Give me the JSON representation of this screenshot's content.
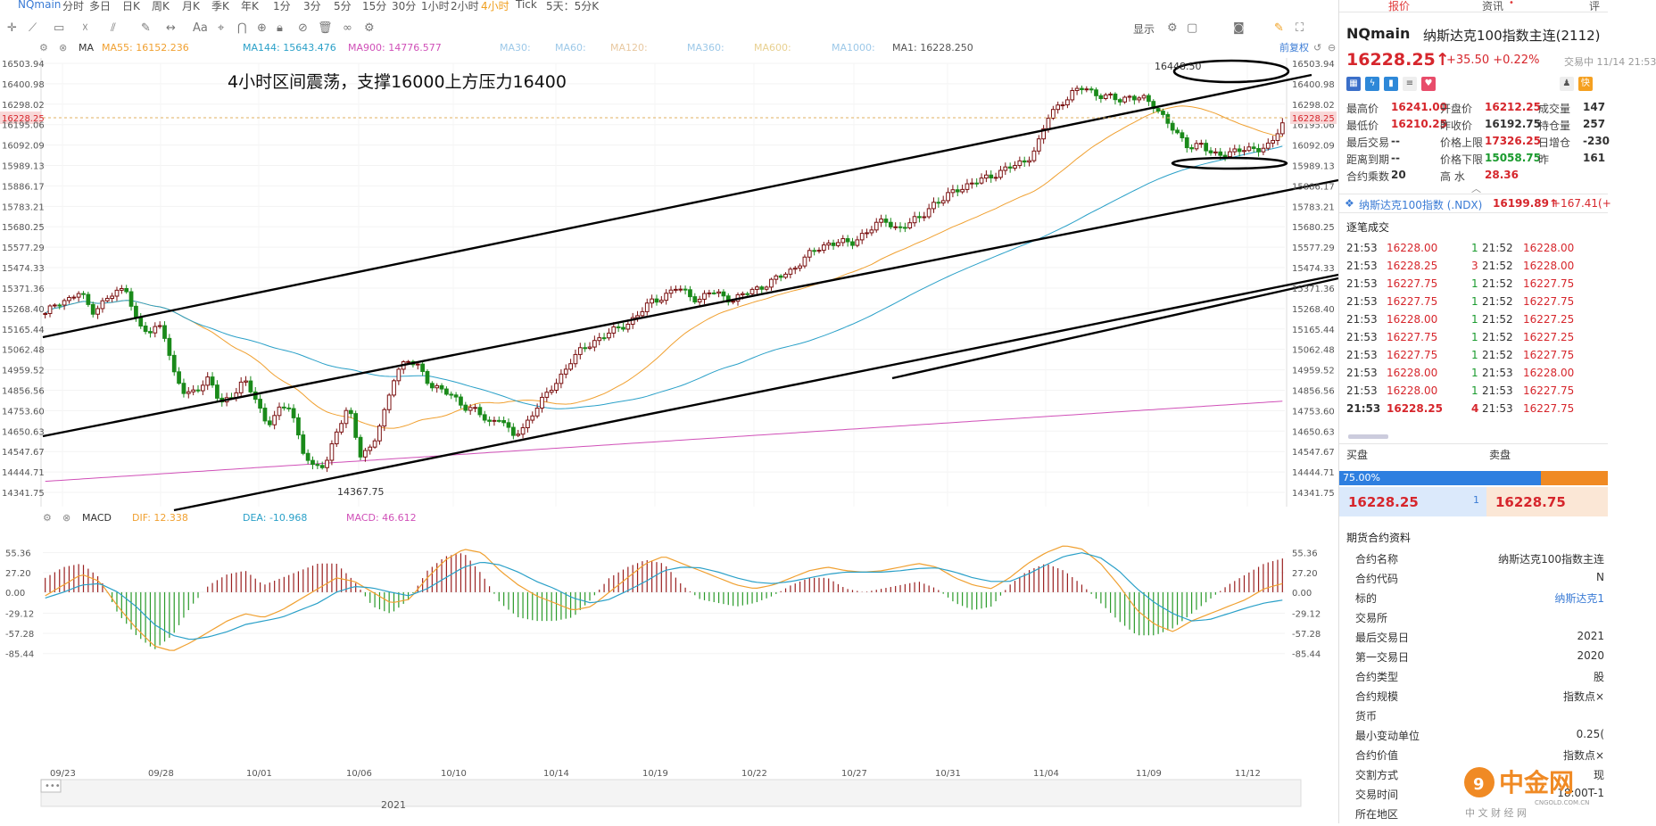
{
  "topbar": {
    "items": [
      "NQmain",
      "分时",
      "多日",
      "日K",
      "周K",
      "月K",
      "季K",
      "年K",
      "1分",
      "3分",
      "5分",
      "15分",
      "30分",
      "1小时",
      "2小时",
      "4小时",
      "Tick",
      "5天：5分K"
    ],
    "active": "4小时",
    "show_label": "显示"
  },
  "ma_legend": {
    "ma_label": "MA",
    "items": [
      {
        "label": "MA55: 16152.236",
        "color": "#f0a030"
      },
      {
        "label": "MA144: 15643.476",
        "color": "#2aa0c8"
      },
      {
        "label": "MA900: 14776.577",
        "color": "#d050b8"
      },
      {
        "label": "MA30:",
        "color": "#9cc8e8"
      },
      {
        "label": "MA60:",
        "color": "#9cc8e8"
      },
      {
        "label": "MA120:",
        "color": "#e8c8a0"
      },
      {
        "label": "MA360:",
        "color": "#9cc8e8"
      },
      {
        "label": "MA600:",
        "color": "#e8d090"
      },
      {
        "label": "MA1000:",
        "color": "#9cc8e8"
      },
      {
        "label": "MA1: 16228.250",
        "color": "#555555"
      }
    ],
    "restore": "前复权"
  },
  "annotation": "4小时区间震荡，支撑16000上方压力16400",
  "chart_data": {
    "type": "candlestick",
    "price_axis": [
      "16503.94",
      "16400.98",
      "16298.02",
      "16195.06",
      "16092.09",
      "15989.13",
      "15886.17",
      "15783.21",
      "15680.25",
      "15577.29",
      "15474.33",
      "15371.36",
      "15268.40",
      "15165.44",
      "15062.48",
      "14959.52",
      "14856.56",
      "14753.60",
      "14650.63",
      "14547.67",
      "14444.71",
      "14341.75"
    ],
    "current_price_label": "16228.25",
    "high_label": "16448.50",
    "low_label": "14367.75",
    "x_dates": [
      "09/23",
      "09/28",
      "10/01",
      "10/06",
      "10/10",
      "10/14",
      "10/19",
      "10/22",
      "10/27",
      "10/31",
      "11/04",
      "11/09",
      "11/12"
    ],
    "year_label": "2021",
    "ylim": [
      14290,
      16560
    ],
    "close_path": [
      15215,
      15290,
      15300,
      15335,
      15240,
      15285,
      15335,
      15360,
      15150,
      15120,
      15180,
      14900,
      14790,
      14830,
      14870,
      14750,
      14790,
      14860,
      14780,
      14630,
      14700,
      14740,
      14500,
      14390,
      14430,
      14600,
      14720,
      14480,
      14510,
      14680,
      14920,
      14970,
      14940,
      14850,
      14810,
      14780,
      14730,
      14700,
      14640,
      14680,
      14560,
      14620,
      14720,
      14790,
      14880,
      14970,
      15030,
      15080,
      15110,
      15140,
      15180,
      15230,
      15290,
      15320,
      15360,
      15330,
      15300,
      15340,
      15320,
      15300,
      15330,
      15360,
      15390,
      15420,
      15460,
      15520,
      15560,
      15600,
      15610,
      15590,
      15650,
      15690,
      15720,
      15680,
      15700,
      15740,
      15810,
      15830,
      15890,
      15910,
      15930,
      15960,
      15990,
      16010,
      16040,
      16120,
      16280,
      16350,
      16400,
      16430,
      16400,
      16380,
      16360,
      16390,
      16370,
      16330,
      16270,
      16170,
      16110,
      16140,
      16060,
      16080,
      16100,
      16090,
      16110,
      16130,
      16228
    ],
    "macd": {
      "title": "MACD",
      "dif": "DIF: 12.338",
      "dea": "DEA: -10.968",
      "macd": "MACD: 46.612",
      "axis": [
        "55.36",
        "27.20",
        "0.00",
        "-29.12",
        "-57.28",
        "-85.44"
      ],
      "ylim": [
        -92,
        62
      ],
      "dif_path": [
        -5,
        10,
        25,
        15,
        -20,
        -50,
        -75,
        -82,
        -70,
        -55,
        -40,
        -30,
        -35,
        -25,
        -10,
        5,
        20,
        15,
        0,
        -15,
        -10,
        20,
        45,
        60,
        55,
        30,
        10,
        -5,
        -15,
        -25,
        -20,
        0,
        20,
        40,
        50,
        40,
        30,
        20,
        10,
        5,
        10,
        20,
        30,
        35,
        30,
        28,
        30,
        35,
        40,
        35,
        20,
        10,
        5,
        20,
        40,
        55,
        65,
        60,
        40,
        10,
        -25,
        -45,
        -55,
        -40,
        -30,
        -20,
        -10,
        5,
        12
      ],
      "dea_path": [
        -8,
        0,
        10,
        12,
        0,
        -20,
        -45,
        -60,
        -66,
        -62,
        -55,
        -45,
        -40,
        -35,
        -25,
        -15,
        0,
        8,
        6,
        0,
        -5,
        5,
        20,
        35,
        42,
        38,
        28,
        15,
        5,
        -8,
        -15,
        -10,
        2,
        15,
        30,
        35,
        34,
        28,
        20,
        14,
        12,
        15,
        20,
        25,
        28,
        28,
        28,
        30,
        33,
        34,
        28,
        20,
        15,
        15,
        25,
        38,
        50,
        55,
        48,
        30,
        5,
        -15,
        -30,
        -40,
        -38,
        -30,
        -22,
        -15,
        -11
      ],
      "hist_path": [
        20,
        35,
        40,
        20,
        -30,
        -60,
        -80,
        -60,
        -20,
        10,
        25,
        30,
        10,
        20,
        30,
        40,
        40,
        15,
        -20,
        -30,
        -10,
        30,
        50,
        55,
        25,
        -15,
        -35,
        -40,
        -40,
        -35,
        -10,
        20,
        35,
        45,
        40,
        10,
        -10,
        -15,
        -20,
        -15,
        -5,
        10,
        20,
        20,
        5,
        0,
        5,
        10,
        15,
        5,
        -15,
        -25,
        -20,
        10,
        30,
        40,
        30,
        10,
        -15,
        -40,
        -60,
        -60,
        -50,
        -30,
        -10,
        10,
        25,
        40,
        47
      ]
    }
  },
  "right_panel": {
    "tabs": [
      "报价",
      "资讯",
      "评"
    ],
    "active_tab": "报价",
    "symbol": "NQmain",
    "symbol_name": "纳斯达克100指数主连(2112)",
    "price": "16228.25↑",
    "change": "+35.50  +0.22%",
    "trade_time": "交易中 11/14 21:53",
    "stats": [
      [
        {
          "l": "最高价",
          "v": "16241.00",
          "c": "red"
        },
        {
          "l": "开盘价",
          "v": "16212.25",
          "c": "red"
        },
        {
          "l": "成交量",
          "v": "147",
          "c": "dark"
        }
      ],
      [
        {
          "l": "最低价",
          "v": "16210.25",
          "c": "red"
        },
        {
          "l": "昨收价",
          "v": "16192.75",
          "c": "dark"
        },
        {
          "l": "持仓量",
          "v": "257",
          "c": "dark"
        }
      ],
      [
        {
          "l": "最后交易",
          "v": "--",
          "c": "dark"
        },
        {
          "l": "价格上限",
          "v": "17326.25",
          "c": "red"
        },
        {
          "l": "日增仓",
          "v": "-230",
          "c": "dark"
        }
      ],
      [
        {
          "l": "距离到期",
          "v": "--",
          "c": "dark"
        },
        {
          "l": "价格下限",
          "v": "15058.75",
          "c": "green"
        },
        {
          "l": "昨",
          "v": "161",
          "c": "dark"
        }
      ],
      [
        {
          "l": "合约乘数",
          "v": "20",
          "c": "dark"
        },
        {
          "l": "高  水",
          "v": "28.36",
          "c": "red"
        },
        {
          "l": "",
          "v": "",
          "c": "dark"
        }
      ]
    ],
    "ndx": {
      "name": "纳斯达克100指数 (.NDX)",
      "price": "16199.89↑",
      "change": "+167.41(+"
    },
    "ticks_title": "逐笔成交",
    "ticks": [
      [
        "21:53",
        "16228.00",
        "1",
        "21:52",
        "16228.00"
      ],
      [
        "21:53",
        "16228.25",
        "3",
        "21:52",
        "16228.00"
      ],
      [
        "21:53",
        "16227.75",
        "1",
        "21:52",
        "16227.75"
      ],
      [
        "21:53",
        "16227.75",
        "1",
        "21:52",
        "16227.75"
      ],
      [
        "21:53",
        "16228.00",
        "1",
        "21:52",
        "16227.25"
      ],
      [
        "21:53",
        "16227.75",
        "1",
        "21:52",
        "16227.25"
      ],
      [
        "21:53",
        "16227.75",
        "1",
        "21:52",
        "16227.75"
      ],
      [
        "21:53",
        "16228.00",
        "1",
        "21:53",
        "16228.00"
      ],
      [
        "21:53",
        "16228.00",
        "1",
        "21:53",
        "16227.75"
      ],
      [
        "21:53",
        "16228.25",
        "4",
        "21:53",
        "16227.75"
      ]
    ],
    "buy_label": "买盘",
    "sell_label": "卖盘",
    "buy_pct": "75.00%",
    "buy_pct_value": 0.75,
    "bid": "16228.25",
    "bid_size": "1",
    "ask": "16228.75",
    "info_title": "期货合约资料",
    "info": [
      [
        "合约名称",
        "纳斯达克100指数主连"
      ],
      [
        "合约代码",
        "N"
      ],
      [
        "标的",
        "纳斯达克1"
      ],
      [
        "交易所",
        ""
      ],
      [
        "最后交易日",
        "2021"
      ],
      [
        "第一交易日",
        "2020"
      ],
      [
        "合约类型",
        "股"
      ],
      [
        "合约规模",
        "指数点×"
      ],
      [
        "货币",
        ""
      ],
      [
        "最小变动单位",
        "0.25("
      ],
      [
        "合约价值",
        "指数点×"
      ],
      [
        "交割方式",
        "现"
      ],
      [
        "交易时间",
        "18:00T-1"
      ],
      [
        "所在地区",
        ""
      ]
    ]
  },
  "watermark": {
    "name": "中金网",
    "site": "CNGOLD.COM.CN",
    "tagline": "中 文 财 经 网"
  }
}
